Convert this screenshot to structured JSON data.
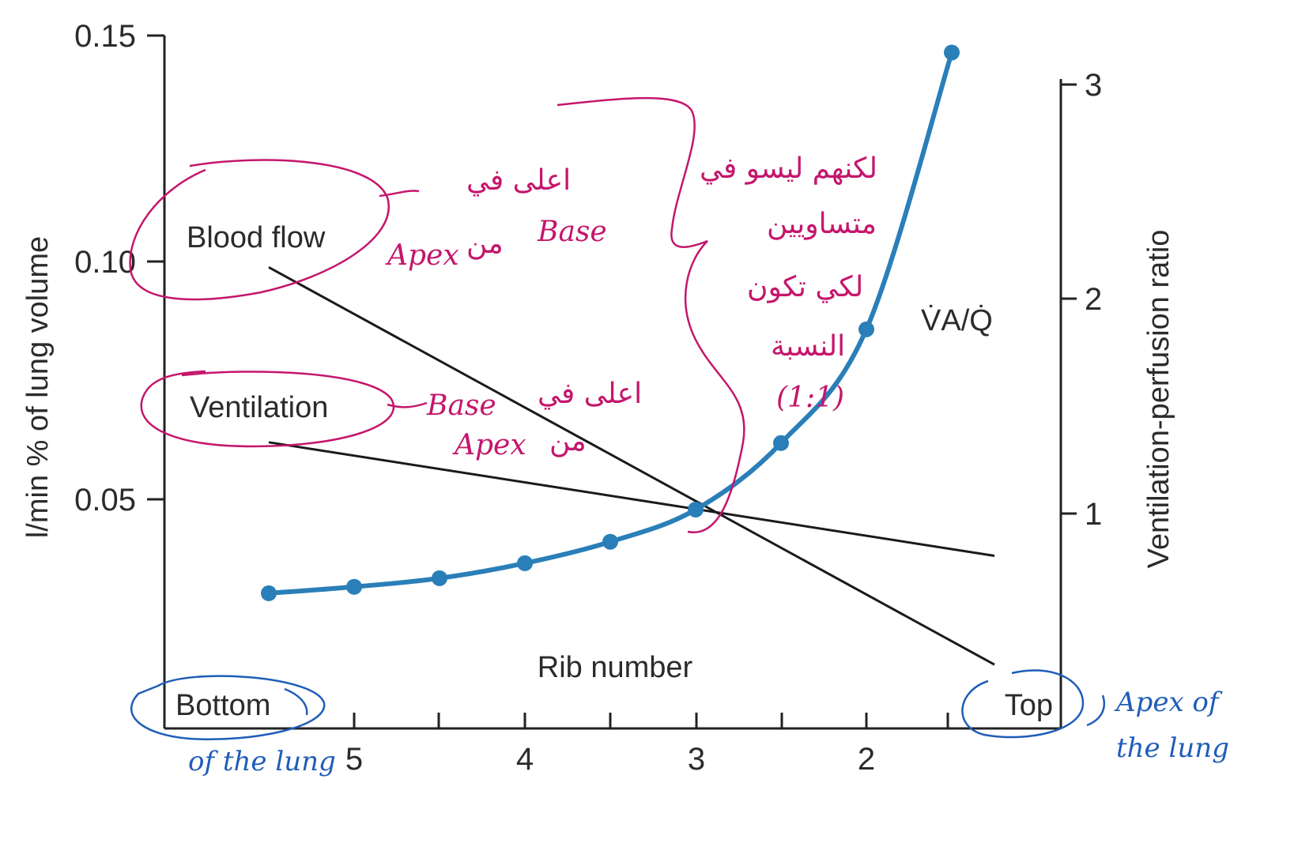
{
  "chart_data": {
    "type": "line",
    "xlabel": "Rib number",
    "x_ticks": [
      "5",
      "4",
      "3",
      "2"
    ],
    "x_end_labels": {
      "left": "Bottom",
      "right": "Top"
    },
    "y_left": {
      "label": "l/min % of lung volume",
      "ticks": [
        "0.05",
        "0.10",
        "0.15"
      ],
      "lim": [
        0,
        0.15
      ]
    },
    "y_right": {
      "label": "Ventilation-perfusion ratio",
      "ticks": [
        "1",
        "2",
        "3"
      ],
      "lim": [
        0,
        3
      ]
    },
    "series": [
      {
        "name": "Blood flow",
        "axis": "left",
        "x": [
          5.5,
          1.25
        ],
        "y": [
          0.099,
          0.015
        ]
      },
      {
        "name": "Ventilation",
        "axis": "left",
        "x": [
          5.5,
          1.25
        ],
        "y": [
          0.062,
          0.038
        ]
      },
      {
        "name": "V̇A/Q̇",
        "axis": "right",
        "x": [
          5.5,
          5.0,
          4.5,
          4.0,
          3.5,
          3.0,
          2.5,
          2.0,
          1.5
        ],
        "y": [
          0.63,
          0.66,
          0.7,
          0.77,
          0.87,
          1.02,
          1.33,
          1.86,
          3.15
        ]
      }
    ],
    "grid": false,
    "legend": "inline labels"
  },
  "annotations": {
    "blue": {
      "bottom_note": "of the lung",
      "top_note_1": "Apex of",
      "top_note_2": "the lung"
    },
    "pink": {
      "blood_note_ar": "اعلى في",
      "blood_note_en": "Apex",
      "blood_note_ar2": "من",
      "blood_note_en2": "Base",
      "vent_note_en": "Base",
      "vent_note_ar": "اعلى في",
      "vent_note_en2": "Apex",
      "vent_note_ar2": "من",
      "right_note_1": "لكنهم ليسو في",
      "right_note_2": "متساويين",
      "right_note_3": "لكي تكون",
      "right_note_4": "النسبة",
      "right_note_5": "(1:1)"
    }
  }
}
